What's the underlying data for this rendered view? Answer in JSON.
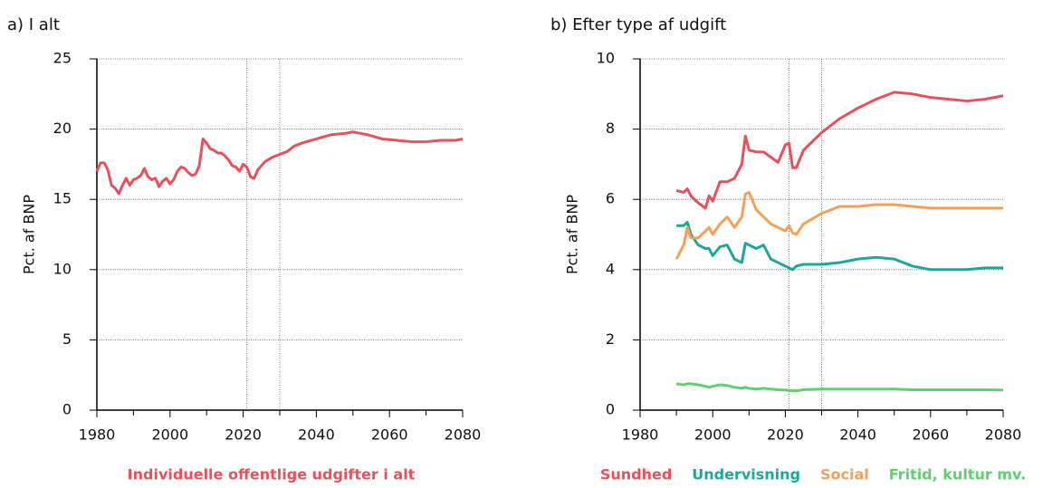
{
  "chart_data": [
    {
      "type": "line",
      "title": "a) I alt",
      "y_label": "Pct. af BNP",
      "x": [
        1980,
        1981,
        1982,
        1983,
        1984,
        1985,
        1986,
        1987,
        1988,
        1989,
        1990,
        1991,
        1992,
        1993,
        1994,
        1995,
        1996,
        1997,
        1998,
        1999,
        2000,
        2001,
        2002,
        2003,
        2004,
        2005,
        2006,
        2007,
        2008,
        2009,
        2010,
        2011,
        2012,
        2013,
        2014,
        2015,
        2016,
        2017,
        2018,
        2019,
        2020,
        2021,
        2022,
        2023,
        2024,
        2026,
        2028,
        2030,
        2032,
        2034,
        2036,
        2040,
        2044,
        2048,
        2050,
        2054,
        2058,
        2062,
        2066,
        2070,
        2074,
        2078,
        2080
      ],
      "series": [
        {
          "name": "Individuelle offentlige udgifter i alt",
          "color": "#e8505b",
          "values": [
            17.0,
            17.6,
            17.6,
            17.1,
            16.0,
            15.8,
            15.4,
            16.0,
            16.5,
            16.0,
            16.4,
            16.5,
            16.7,
            17.2,
            16.6,
            16.4,
            16.5,
            15.9,
            16.3,
            16.5,
            16.1,
            16.4,
            17.0,
            17.3,
            17.2,
            16.9,
            16.7,
            16.8,
            17.4,
            19.3,
            19.0,
            18.6,
            18.5,
            18.3,
            18.3,
            18.1,
            17.8,
            17.4,
            17.3,
            17.0,
            17.5,
            17.3,
            16.6,
            16.5,
            17.1,
            17.7,
            18.0,
            18.2,
            18.4,
            18.8,
            19.0,
            19.3,
            19.6,
            19.7,
            19.8,
            19.6,
            19.3,
            19.2,
            19.1,
            19.1,
            19.2,
            19.2,
            19.3
          ]
        }
      ],
      "xlim": [
        1980,
        2080
      ],
      "xticks": [
        1980,
        2000,
        2020,
        2040,
        2060,
        2080
      ],
      "xminor_ticks": [
        1990,
        2010,
        2030,
        2050,
        2070
      ],
      "ylim": [
        0,
        25
      ],
      "yticks": [
        0,
        5,
        10,
        15,
        20,
        25
      ],
      "grid": true,
      "vlines": [
        2021,
        2030
      ]
    },
    {
      "type": "line",
      "title": "b) Efter type af udgift",
      "y_label": "Pct. af BNP",
      "x": [
        1990,
        1992,
        1993,
        1994,
        1996,
        1998,
        1999,
        2000,
        2002,
        2004,
        2006,
        2008,
        2009,
        2010,
        2012,
        2014,
        2016,
        2018,
        2020,
        2021,
        2022,
        2023,
        2025,
        2030,
        2035,
        2040,
        2045,
        2050,
        2055,
        2060,
        2065,
        2070,
        2075,
        2080
      ],
      "series": [
        {
          "name": "Sundhed",
          "color": "#e8505b",
          "values": [
            6.25,
            6.2,
            6.3,
            6.1,
            5.9,
            5.75,
            6.1,
            5.95,
            6.5,
            6.5,
            6.6,
            7.0,
            7.8,
            7.4,
            7.35,
            7.35,
            7.2,
            7.05,
            7.55,
            7.6,
            6.9,
            6.9,
            7.4,
            7.9,
            8.3,
            8.6,
            8.85,
            9.05,
            9.0,
            8.9,
            8.85,
            8.8,
            8.85,
            8.95
          ]
        },
        {
          "name": "Undervisning",
          "color": "#1ba89a",
          "values": [
            5.25,
            5.25,
            5.35,
            5.0,
            4.7,
            4.6,
            4.6,
            4.4,
            4.65,
            4.7,
            4.3,
            4.2,
            4.75,
            4.7,
            4.6,
            4.7,
            4.3,
            4.2,
            4.1,
            4.05,
            4.0,
            4.1,
            4.15,
            4.15,
            4.2,
            4.3,
            4.35,
            4.3,
            4.1,
            4.0,
            4.0,
            4.0,
            4.05,
            4.05
          ]
        },
        {
          "name": "Social",
          "color": "#f5a05a",
          "values": [
            4.3,
            4.7,
            5.2,
            4.9,
            4.9,
            5.1,
            5.2,
            5.0,
            5.3,
            5.5,
            5.2,
            5.5,
            6.15,
            6.2,
            5.7,
            5.5,
            5.3,
            5.2,
            5.1,
            5.25,
            5.05,
            5.0,
            5.3,
            5.6,
            5.8,
            5.8,
            5.85,
            5.85,
            5.8,
            5.75,
            5.75,
            5.75,
            5.75,
            5.75
          ]
        },
        {
          "name": "Fritid, kultur mv.",
          "color": "#5fcf6f",
          "values": [
            0.75,
            0.72,
            0.75,
            0.75,
            0.72,
            0.68,
            0.65,
            0.68,
            0.72,
            0.7,
            0.65,
            0.62,
            0.65,
            0.62,
            0.6,
            0.62,
            0.6,
            0.58,
            0.57,
            0.56,
            0.55,
            0.55,
            0.58,
            0.6,
            0.6,
            0.6,
            0.6,
            0.6,
            0.58,
            0.58,
            0.58,
            0.58,
            0.58,
            0.57
          ]
        }
      ],
      "xlim": [
        1980,
        2080
      ],
      "xticks": [
        1980,
        2000,
        2020,
        2040,
        2060,
        2080
      ],
      "xminor_ticks": [
        1990,
        2010,
        2030,
        2050,
        2070
      ],
      "ylim": [
        0,
        10
      ],
      "yticks": [
        0,
        2,
        4,
        6,
        8,
        10
      ],
      "grid": true,
      "vlines": [
        2021,
        2030
      ]
    }
  ]
}
